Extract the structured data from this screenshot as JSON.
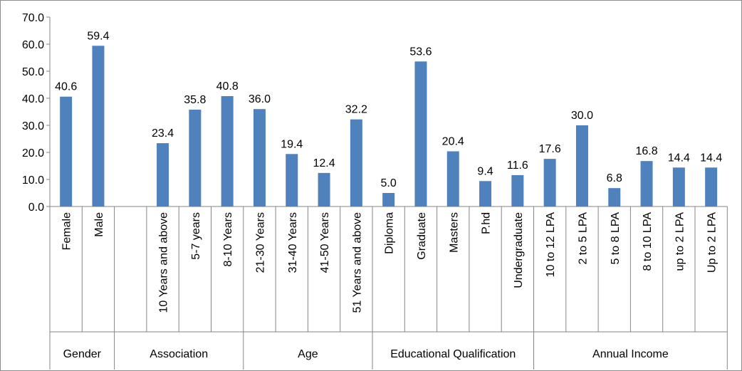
{
  "chart_data": {
    "type": "bar",
    "title": "",
    "xlabel": "",
    "ylabel": "",
    "ylim": [
      0,
      70
    ],
    "yticks": [
      "0.0",
      "10.0",
      "20.0",
      "30.0",
      "40.0",
      "50.0",
      "60.0",
      "70.0"
    ],
    "grid": false,
    "legend": "none",
    "bar_color": "#4f81bd",
    "categories": [
      "Female",
      "Male",
      "",
      "10 Years and above",
      "5-7 years",
      "8-10 Years",
      "21-30 Years",
      "31-40 Years",
      "41-50 Years",
      "51 Years and above",
      "Diploma",
      "Graduate",
      "Masters",
      "P.hd",
      "Undergraduate",
      "10 to  12 LPA",
      "2 to 5 LPA",
      "5 to 8 LPA",
      "8 to 10 LPA",
      "up to 2 LPA",
      "Up to 2 LPA"
    ],
    "values": [
      40.6,
      59.4,
      null,
      23.4,
      35.8,
      40.8,
      36.0,
      19.4,
      12.4,
      32.2,
      5.0,
      53.6,
      20.4,
      9.4,
      11.6,
      17.6,
      30.0,
      6.8,
      16.8,
      14.4,
      14.4
    ],
    "data_labels": [
      "40.6",
      "59.4",
      "",
      "23.4",
      "35.8",
      "40.8",
      "36.0",
      "19.4",
      "12.4",
      "32.2",
      "5.0",
      "53.6",
      "20.4",
      "9.4",
      "11.6",
      "17.6",
      "30.0",
      "6.8",
      "16.8",
      "14.4",
      "14.4"
    ],
    "groups": [
      {
        "label": "Gender",
        "span": 2
      },
      {
        "label": "Association",
        "span": 4
      },
      {
        "label": "Age",
        "span": 4
      },
      {
        "label": "Educational Qualification",
        "span": 5
      },
      {
        "label": "Annual    Income",
        "span": 6
      }
    ]
  }
}
